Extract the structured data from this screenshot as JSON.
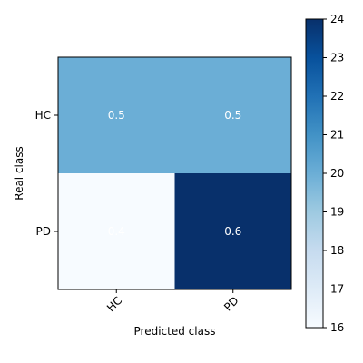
{
  "chart_data": {
    "type": "heatmap",
    "title": "",
    "x_categories": [
      "HC",
      "PD"
    ],
    "y_categories": [
      "HC",
      "PD"
    ],
    "xlabel": "Predicted class",
    "ylabel": "Real class",
    "cell_values": [
      [
        20,
        20
      ],
      [
        16,
        24
      ]
    ],
    "cell_labels": [
      [
        "0.5",
        "0.5"
      ],
      [
        "0.4",
        "0.6"
      ]
    ],
    "colorbar": {
      "min": 16,
      "max": 24,
      "ticks": [
        "16",
        "17",
        "18",
        "19",
        "20",
        "21",
        "22",
        "23",
        "24"
      ],
      "colormap": "Blues",
      "colors": [
        "#f7fbff",
        "#deebf7",
        "#c6dbef",
        "#9ecae1",
        "#6baed6",
        "#4292c6",
        "#2171b5",
        "#08519c",
        "#08306b"
      ]
    },
    "annotation_color": "#ffffff"
  }
}
